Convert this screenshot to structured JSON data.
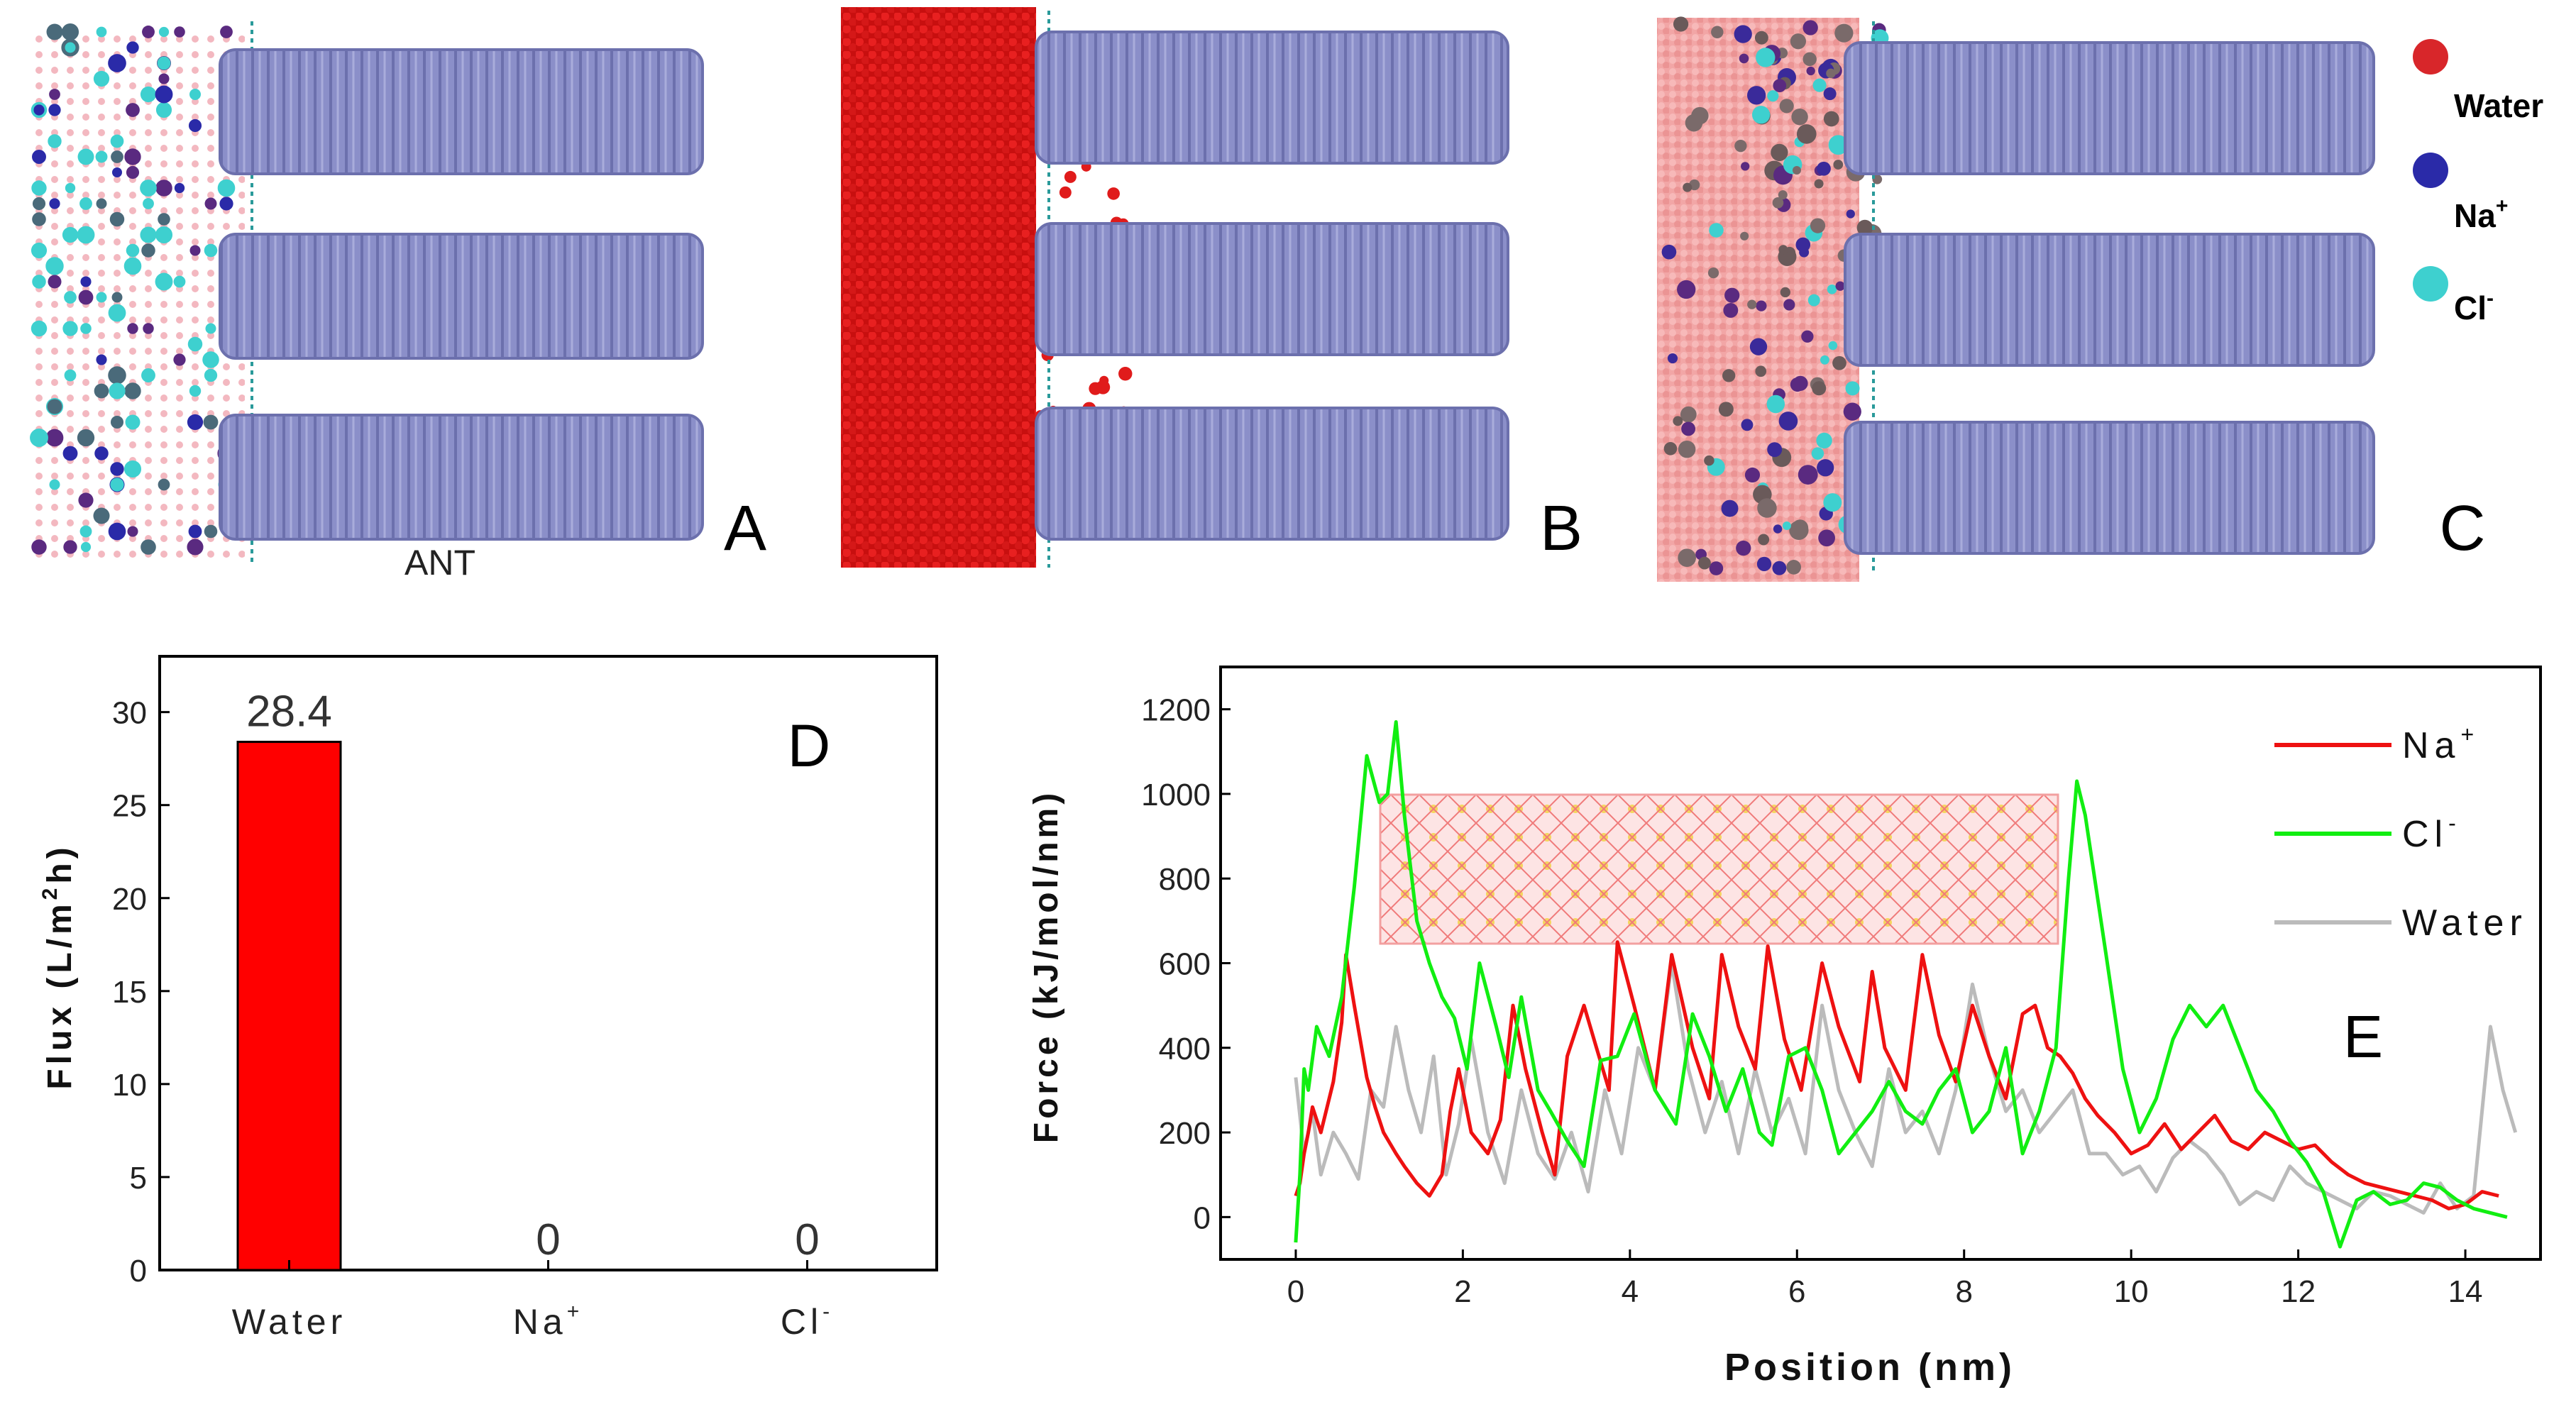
{
  "panels": {
    "A": {
      "letter": "A",
      "sub_label": "ANT"
    },
    "B": {
      "letter": "B"
    },
    "C": {
      "letter": "C"
    }
  },
  "legend_top": {
    "items": [
      {
        "label": "Water",
        "sup": "",
        "color": "#d8262a"
      },
      {
        "label": "Na",
        "sup": "+",
        "color": "#2a2aa8"
      },
      {
        "label": "Cl",
        "sup": "-",
        "color": "#3ed0cf"
      }
    ]
  },
  "colors": {
    "nanotube": "#8b8fc9",
    "water_red": "#e01b1b",
    "na_line": "#ee1111",
    "cl_line": "#11ee11",
    "water_line": "#bbbbbb",
    "bar_red": "#ff0000"
  },
  "chart_data": [
    {
      "id": "D",
      "type": "bar",
      "panel_letter": "D",
      "categories": [
        "Water",
        "Na",
        "Cl"
      ],
      "category_sups": [
        "",
        "+",
        "-"
      ],
      "values": [
        28.4,
        0,
        0
      ],
      "value_labels": [
        "28.4",
        "0",
        "0"
      ],
      "ylabel": "Flux (L/m",
      "ylabel_sup": "2",
      "ylabel_tail": "h)",
      "ylim": [
        0,
        33
      ],
      "yticks": [
        0,
        5,
        10,
        15,
        20,
        25,
        30
      ],
      "ytick_labels": [
        "0",
        "5",
        "10",
        "15",
        "20",
        "25",
        "30"
      ]
    },
    {
      "id": "E",
      "type": "line",
      "panel_letter": "E",
      "xlabel": "Position (nm)",
      "ylabel": "Force (kJ/mol/nm)",
      "xlim": [
        -0.9,
        14.9
      ],
      "ylim": [
        -100,
        1300
      ],
      "xticks": [
        0,
        2,
        4,
        6,
        8,
        10,
        12,
        14
      ],
      "xtick_labels": [
        "0",
        "2",
        "4",
        "6",
        "8",
        "10",
        "12",
        "14"
      ],
      "yticks": [
        0,
        200,
        400,
        600,
        800,
        1000,
        1200
      ],
      "ytick_labels": [
        "0",
        "200",
        "400",
        "600",
        "800",
        "1000",
        "1200"
      ],
      "legend": [
        {
          "label": "Na",
          "sup": "+"
        },
        {
          "label": "Cl",
          "sup": "-"
        },
        {
          "label": "Water",
          "sup": ""
        }
      ],
      "series": [
        {
          "name": "Na+",
          "color": "#ee1111",
          "x": [
            0,
            0.05,
            0.1,
            0.15,
            0.2,
            0.3,
            0.45,
            0.55,
            0.6,
            0.7,
            0.85,
            0.95,
            1.05,
            1.2,
            1.3,
            1.45,
            1.6,
            1.75,
            1.85,
            1.95,
            2.1,
            2.3,
            2.45,
            2.6,
            2.75,
            2.95,
            3.1,
            3.25,
            3.45,
            3.6,
            3.75,
            3.85,
            4.05,
            4.3,
            4.5,
            4.75,
            4.95,
            5.1,
            5.3,
            5.5,
            5.65,
            5.85,
            6.05,
            6.3,
            6.5,
            6.75,
            6.9,
            7.05,
            7.3,
            7.5,
            7.7,
            7.9,
            8.1,
            8.3,
            8.5,
            8.7,
            8.85,
            9.0,
            9.15,
            9.3,
            9.45,
            9.6,
            9.8,
            10.0,
            10.2,
            10.4,
            10.6,
            10.8,
            11.0,
            11.2,
            11.4,
            11.6,
            11.8,
            12.0,
            12.2,
            12.4,
            12.6,
            12.8,
            13.0,
            13.2,
            13.4,
            13.6,
            13.8,
            14.0,
            14.2,
            14.4
          ],
          "y": [
            50,
            80,
            150,
            200,
            260,
            200,
            320,
            460,
            620,
            500,
            330,
            260,
            200,
            150,
            120,
            80,
            50,
            100,
            250,
            350,
            200,
            150,
            230,
            500,
            350,
            200,
            100,
            380,
            500,
            400,
            300,
            650,
            500,
            300,
            620,
            400,
            280,
            620,
            450,
            350,
            640,
            420,
            300,
            600,
            450,
            320,
            580,
            400,
            300,
            620,
            430,
            320,
            500,
            380,
            280,
            480,
            500,
            400,
            380,
            340,
            280,
            240,
            200,
            150,
            170,
            220,
            160,
            200,
            240,
            180,
            160,
            200,
            180,
            160,
            170,
            130,
            100,
            80,
            70,
            60,
            50,
            40,
            20,
            30,
            60,
            50
          ]
        },
        {
          "name": "Cl-",
          "color": "#11ee11",
          "x": [
            0,
            0.05,
            0.1,
            0.15,
            0.25,
            0.4,
            0.55,
            0.7,
            0.85,
            1.0,
            1.1,
            1.2,
            1.3,
            1.45,
            1.6,
            1.75,
            1.9,
            2.05,
            2.2,
            2.4,
            2.55,
            2.7,
            2.9,
            3.05,
            3.25,
            3.45,
            3.65,
            3.85,
            4.05,
            4.3,
            4.55,
            4.75,
            4.95,
            5.15,
            5.35,
            5.55,
            5.7,
            5.9,
            6.1,
            6.3,
            6.5,
            6.7,
            6.9,
            7.1,
            7.3,
            7.5,
            7.7,
            7.9,
            8.1,
            8.3,
            8.5,
            8.7,
            8.9,
            9.1,
            9.25,
            9.35,
            9.45,
            9.7,
            9.9,
            10.1,
            10.3,
            10.5,
            10.7,
            10.9,
            11.1,
            11.3,
            11.5,
            11.7,
            11.9,
            12.1,
            12.3,
            12.5,
            12.7,
            12.9,
            13.1,
            13.3,
            13.5,
            13.7,
            13.9,
            14.1,
            14.3,
            14.5
          ],
          "y": [
            -60,
            100,
            350,
            300,
            450,
            380,
            520,
            780,
            1090,
            980,
            1000,
            1170,
            950,
            700,
            600,
            520,
            470,
            350,
            600,
            450,
            330,
            520,
            300,
            250,
            180,
            120,
            370,
            380,
            480,
            300,
            220,
            480,
            380,
            250,
            350,
            200,
            170,
            380,
            400,
            300,
            150,
            200,
            250,
            320,
            250,
            220,
            300,
            350,
            200,
            250,
            400,
            150,
            250,
            400,
            800,
            1030,
            950,
            620,
            350,
            200,
            280,
            420,
            500,
            450,
            500,
            400,
            300,
            250,
            180,
            130,
            60,
            -70,
            40,
            60,
            30,
            40,
            80,
            70,
            40,
            20,
            10,
            0
          ]
        },
        {
          "name": "Water",
          "color": "#bbbbbb",
          "x": [
            0,
            0.1,
            0.2,
            0.3,
            0.45,
            0.6,
            0.75,
            0.9,
            1.05,
            1.2,
            1.35,
            1.5,
            1.65,
            1.8,
            1.95,
            2.1,
            2.3,
            2.5,
            2.7,
            2.9,
            3.1,
            3.3,
            3.5,
            3.7,
            3.9,
            4.1,
            4.3,
            4.5,
            4.7,
            4.9,
            5.1,
            5.3,
            5.5,
            5.7,
            5.9,
            6.1,
            6.3,
            6.5,
            6.7,
            6.9,
            7.1,
            7.3,
            7.5,
            7.7,
            7.9,
            8.1,
            8.3,
            8.5,
            8.7,
            8.9,
            9.1,
            9.3,
            9.5,
            9.7,
            9.9,
            10.1,
            10.3,
            10.5,
            10.7,
            10.9,
            11.1,
            11.3,
            11.5,
            11.7,
            11.9,
            12.1,
            12.3,
            12.5,
            12.7,
            12.9,
            13.1,
            13.3,
            13.5,
            13.7,
            13.9,
            14.1,
            14.3,
            14.45,
            14.6
          ],
          "y": [
            330,
            150,
            250,
            100,
            200,
            150,
            90,
            300,
            260,
            450,
            300,
            200,
            380,
            100,
            220,
            420,
            200,
            80,
            300,
            150,
            90,
            200,
            60,
            300,
            150,
            400,
            300,
            600,
            350,
            200,
            320,
            150,
            350,
            200,
            280,
            150,
            500,
            300,
            200,
            120,
            350,
            200,
            250,
            150,
            300,
            550,
            380,
            250,
            300,
            200,
            250,
            300,
            150,
            150,
            100,
            120,
            60,
            140,
            180,
            150,
            100,
            30,
            60,
            40,
            120,
            80,
            60,
            40,
            20,
            60,
            50,
            30,
            10,
            80,
            20,
            50,
            450,
            300,
            200
          ]
        }
      ]
    }
  ]
}
